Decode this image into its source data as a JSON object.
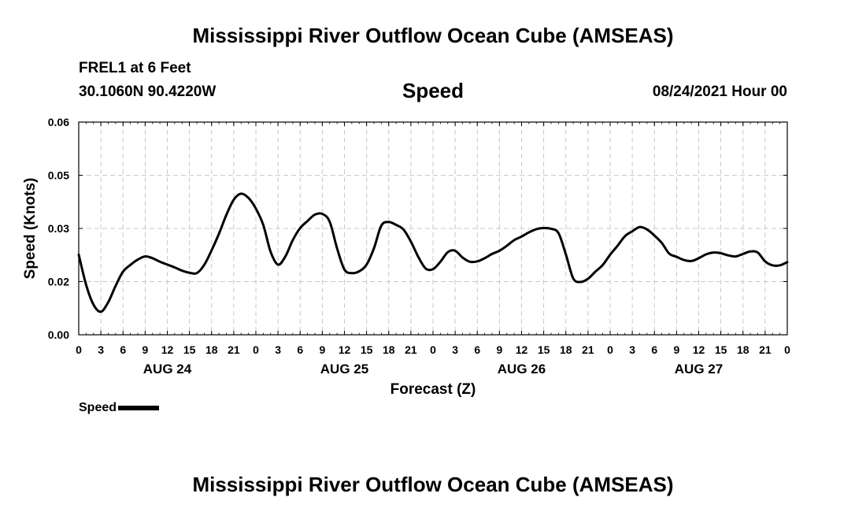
{
  "header": {
    "title": "Mississippi River Outflow Ocean Cube (AMSEAS)",
    "station": "FREL1 at 6 Feet",
    "coordinates": "30.1060N  90.4220W",
    "variable": "Speed",
    "run_time": "08/24/2021 Hour 00"
  },
  "footer": {
    "title": "Mississippi River Outflow Ocean Cube (AMSEAS)"
  },
  "legend": {
    "label": "Speed"
  },
  "chart_data": {
    "type": "line",
    "title": "Speed",
    "xlabel": "Forecast (Z)",
    "ylabel": "Speed (Knots)",
    "xlim": [
      0,
      96
    ],
    "ylim": [
      0,
      0.06
    ],
    "y_ticks": [
      "0.00",
      "0.02",
      "0.03",
      "0.05",
      "0.06"
    ],
    "y_tick_values": [
      0,
      0.015,
      0.03,
      0.045,
      0.06
    ],
    "x_ticks": [
      "0",
      "3",
      "6",
      "9",
      "12",
      "15",
      "18",
      "21",
      "0",
      "3",
      "6",
      "9",
      "12",
      "15",
      "18",
      "21",
      "0",
      "3",
      "6",
      "9",
      "12",
      "15",
      "18",
      "21",
      "0",
      "3",
      "6",
      "9",
      "12",
      "15",
      "18",
      "21",
      "0"
    ],
    "day_labels": [
      {
        "label": "AUG 24",
        "hour": 12
      },
      {
        "label": "AUG 25",
        "hour": 36
      },
      {
        "label": "AUG 26",
        "hour": 60
      },
      {
        "label": "AUG 27",
        "hour": 84
      }
    ],
    "grid": true,
    "series": [
      {
        "name": "Speed",
        "x": [
          0,
          1,
          2,
          3,
          4,
          5,
          6,
          7,
          8,
          9,
          10,
          11,
          12,
          13,
          14,
          15,
          16,
          17,
          18,
          19,
          20,
          21,
          22,
          23,
          24,
          25,
          26,
          27,
          28,
          29,
          30,
          31,
          32,
          33,
          34,
          35,
          36,
          37,
          38,
          39,
          40,
          41,
          42,
          43,
          44,
          45,
          46,
          47,
          48,
          49,
          50,
          51,
          52,
          53,
          54,
          55,
          56,
          57,
          58,
          59,
          60,
          61,
          62,
          63,
          64,
          65,
          66,
          67,
          68,
          69,
          70,
          71,
          72,
          73,
          74,
          75,
          76,
          77,
          78,
          79,
          80,
          81,
          82,
          83,
          84,
          85,
          86,
          87,
          88,
          89,
          90,
          91,
          92,
          93,
          94,
          95,
          96
        ],
        "values": [
          0.0226,
          0.0141,
          0.0085,
          0.0065,
          0.0092,
          0.0138,
          0.0178,
          0.0197,
          0.0212,
          0.0221,
          0.0216,
          0.0206,
          0.0198,
          0.019,
          0.0181,
          0.0175,
          0.0174,
          0.0197,
          0.0238,
          0.0285,
          0.0338,
          0.0381,
          0.0398,
          0.0386,
          0.0356,
          0.031,
          0.0234,
          0.0198,
          0.0221,
          0.0267,
          0.0301,
          0.0321,
          0.0339,
          0.0341,
          0.0319,
          0.0244,
          0.0184,
          0.0174,
          0.0179,
          0.0198,
          0.0244,
          0.0308,
          0.0318,
          0.031,
          0.0297,
          0.0263,
          0.022,
          0.0187,
          0.0185,
          0.0206,
          0.0233,
          0.0237,
          0.0218,
          0.0206,
          0.0207,
          0.0216,
          0.0228,
          0.0237,
          0.0251,
          0.0267,
          0.0277,
          0.0289,
          0.0298,
          0.0301,
          0.0299,
          0.0287,
          0.0227,
          0.0159,
          0.0149,
          0.0158,
          0.0178,
          0.0197,
          0.0226,
          0.0251,
          0.0278,
          0.0292,
          0.0304,
          0.0297,
          0.028,
          0.0259,
          0.0229,
          0.022,
          0.0211,
          0.0208,
          0.0216,
          0.0227,
          0.0232,
          0.023,
          0.0224,
          0.0221,
          0.0228,
          0.0235,
          0.0232,
          0.0207,
          0.0196,
          0.0196,
          0.0205
        ]
      }
    ]
  }
}
